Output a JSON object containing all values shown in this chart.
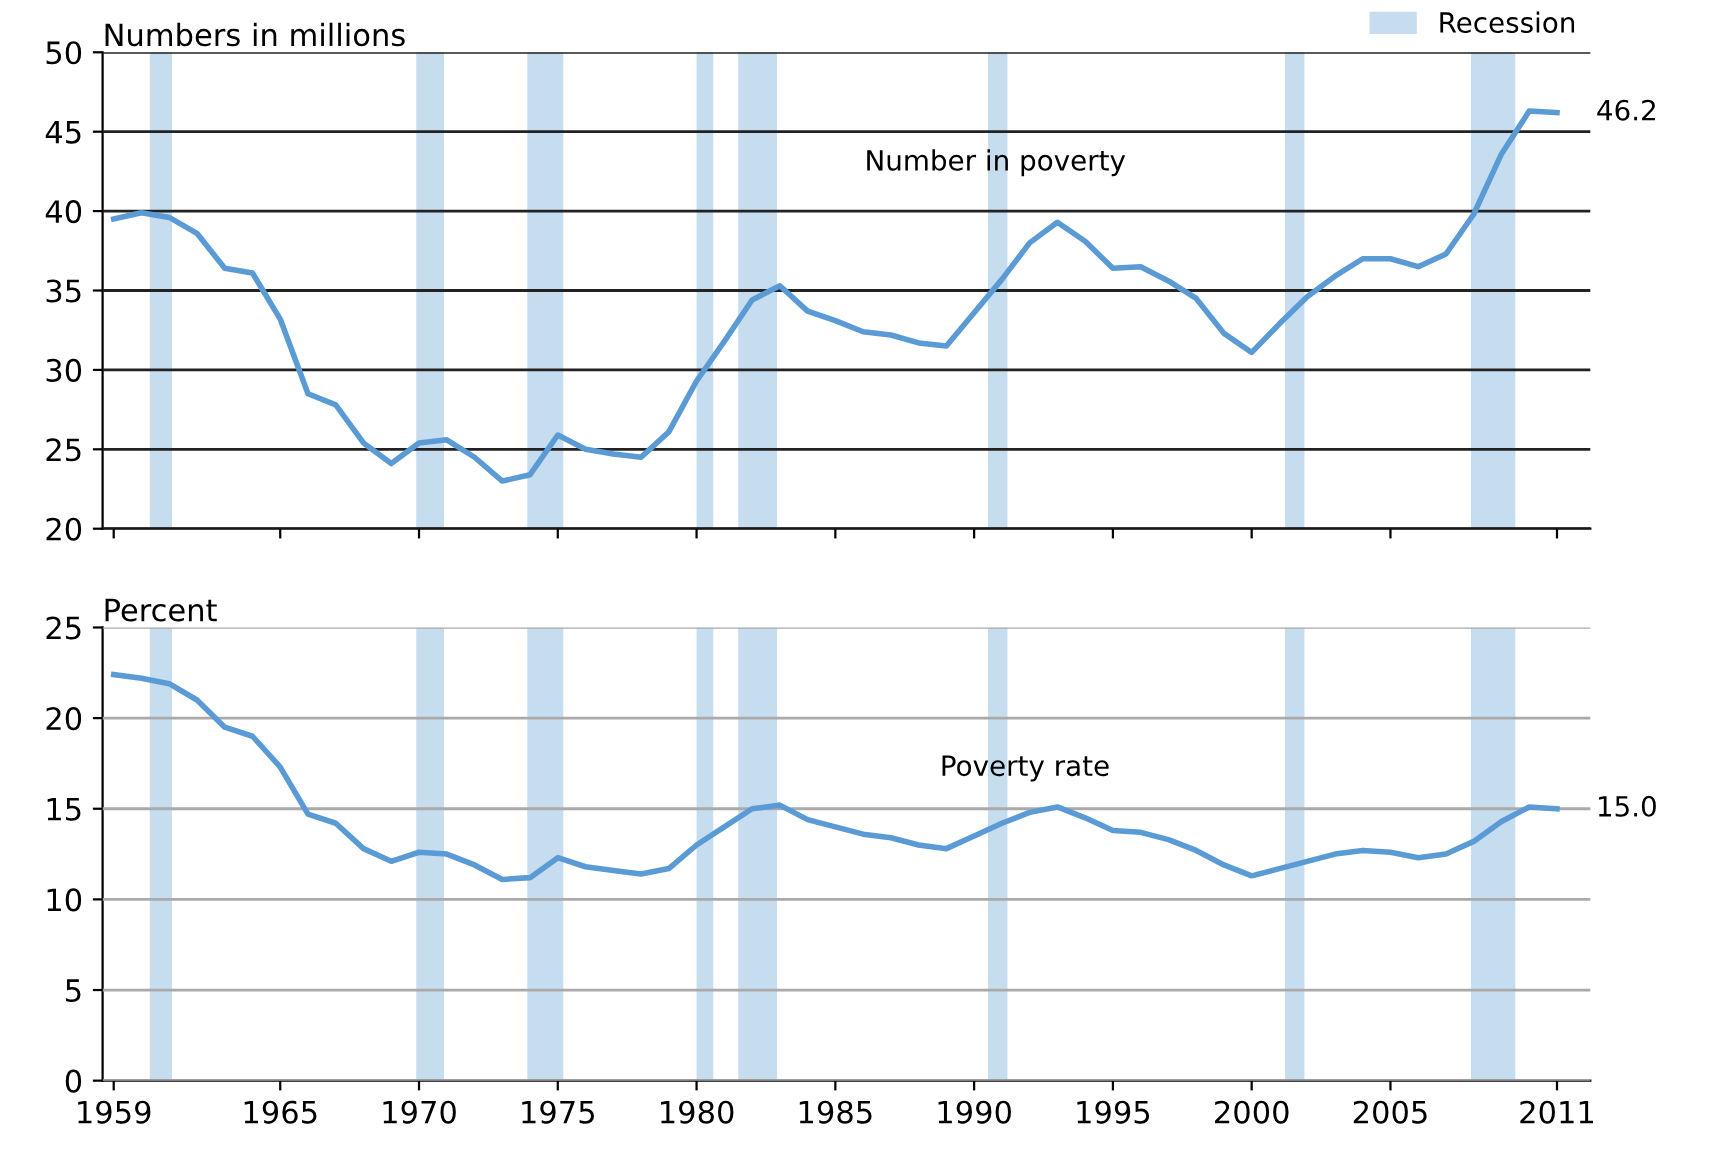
{
  "chart_data": [
    {
      "type": "line",
      "ylabel": "Numbers in millions",
      "x": [
        1959,
        1960,
        1961,
        1962,
        1963,
        1964,
        1965,
        1966,
        1967,
        1968,
        1969,
        1970,
        1971,
        1972,
        1973,
        1974,
        1975,
        1976,
        1977,
        1978,
        1979,
        1980,
        1981,
        1982,
        1983,
        1984,
        1985,
        1986,
        1987,
        1988,
        1989,
        1990,
        1991,
        1992,
        1993,
        1994,
        1995,
        1996,
        1997,
        1998,
        1999,
        2000,
        2001,
        2002,
        2003,
        2004,
        2005,
        2006,
        2007,
        2008,
        2009,
        2010,
        2011
      ],
      "series": [
        {
          "color": "#5b9bd5",
          "values": [
            39.5,
            39.9,
            39.6,
            38.6,
            36.4,
            36.1,
            33.2,
            28.5,
            27.8,
            25.4,
            24.1,
            25.4,
            25.6,
            24.5,
            23.0,
            23.4,
            25.9,
            25.0,
            24.7,
            24.5,
            26.1,
            29.3,
            31.8,
            34.4,
            35.3,
            33.7,
            33.1,
            32.4,
            32.2,
            31.7,
            31.5,
            33.6,
            35.7,
            38.0,
            39.3,
            38.1,
            36.4,
            36.5,
            35.6,
            34.5,
            32.3,
            31.1,
            32.9,
            34.6,
            35.9,
            37.0,
            37.0,
            36.5,
            37.3,
            39.8,
            43.6,
            46.3,
            46.2
          ]
        }
      ],
      "xlim": [
        1958.6,
        2012.2
      ],
      "xticks": [
        1959,
        1965,
        1970,
        1975,
        1980,
        1985,
        1990,
        1995,
        2000,
        2005,
        2011
      ],
      "ylim": [
        20,
        50
      ],
      "yticks": [
        20,
        25,
        30,
        35,
        40,
        45,
        50
      ],
      "grid": "y",
      "tick_labels": "y",
      "legend": "top right",
      "annotations": [
        "Number in poverty",
        {
          "text": "46.2",
          "x": 2011,
          "y": 46.2
        }
      ],
      "bands": [
        {
          "axis": "x",
          "from": 1960.3,
          "to": 1961.1,
          "color": "#c6dcef",
          "label": "Recession"
        },
        {
          "axis": "x",
          "from": 1969.9,
          "to": 1970.9,
          "color": "#c6dcef"
        },
        {
          "axis": "x",
          "from": 1973.9,
          "to": 1975.2,
          "color": "#c6dcef"
        },
        {
          "axis": "x",
          "from": 1980.0,
          "to": 1980.6,
          "color": "#c6dcef"
        },
        {
          "axis": "x",
          "from": 1981.5,
          "to": 1982.9,
          "color": "#c6dcef"
        },
        {
          "axis": "x",
          "from": 1990.5,
          "to": 1991.2,
          "color": "#c6dcef"
        },
        {
          "axis": "x",
          "from": 2001.2,
          "to": 2001.9,
          "color": "#c6dcef"
        },
        {
          "axis": "x",
          "from": 2007.9,
          "to": 2009.5,
          "color": "#c6dcef"
        }
      ]
    },
    {
      "type": "line",
      "ylabel": "Percent",
      "x": [
        1959,
        1960,
        1961,
        1962,
        1963,
        1964,
        1965,
        1966,
        1967,
        1968,
        1969,
        1970,
        1971,
        1972,
        1973,
        1974,
        1975,
        1976,
        1977,
        1978,
        1979,
        1980,
        1981,
        1982,
        1983,
        1984,
        1985,
        1986,
        1987,
        1988,
        1989,
        1990,
        1991,
        1992,
        1993,
        1994,
        1995,
        1996,
        1997,
        1998,
        1999,
        2000,
        2001,
        2002,
        2003,
        2004,
        2005,
        2006,
        2007,
        2008,
        2009,
        2010,
        2011
      ],
      "series": [
        {
          "color": "#5b9bd5",
          "values": [
            22.4,
            22.2,
            21.9,
            21.0,
            19.5,
            19.0,
            17.3,
            14.7,
            14.2,
            12.8,
            12.1,
            12.6,
            12.5,
            11.9,
            11.1,
            11.2,
            12.3,
            11.8,
            11.6,
            11.4,
            11.7,
            13.0,
            14.0,
            15.0,
            15.2,
            14.4,
            14.0,
            13.6,
            13.4,
            13.0,
            12.8,
            13.5,
            14.2,
            14.8,
            15.1,
            14.5,
            13.8,
            13.7,
            13.3,
            12.7,
            11.9,
            11.3,
            11.7,
            12.1,
            12.5,
            12.7,
            12.6,
            12.3,
            12.5,
            13.2,
            14.3,
            15.1,
            15.0
          ]
        }
      ],
      "xlim": [
        1958.6,
        2012.2
      ],
      "xticks": [
        1959,
        1965,
        1970,
        1975,
        1980,
        1985,
        1990,
        1995,
        2000,
        2005,
        2011
      ],
      "ylim": [
        0,
        25
      ],
      "yticks": [
        0,
        5,
        10,
        15,
        20,
        25
      ],
      "grid": "y",
      "annotations": [
        "Poverty rate",
        {
          "text": "15.0",
          "x": 2011,
          "y": 15.0
        }
      ],
      "bands": [
        {
          "axis": "x",
          "from": 1960.3,
          "to": 1961.1,
          "color": "#c6dcef"
        },
        {
          "axis": "x",
          "from": 1969.9,
          "to": 1970.9,
          "color": "#c6dcef"
        },
        {
          "axis": "x",
          "from": 1973.9,
          "to": 1975.2,
          "color": "#c6dcef"
        },
        {
          "axis": "x",
          "from": 1980.0,
          "to": 1980.6,
          "color": "#c6dcef"
        },
        {
          "axis": "x",
          "from": 1981.5,
          "to": 1982.9,
          "color": "#c6dcef"
        },
        {
          "axis": "x",
          "from": 1990.5,
          "to": 1991.2,
          "color": "#c6dcef"
        },
        {
          "axis": "x",
          "from": 2001.2,
          "to": 2001.9,
          "color": "#c6dcef"
        },
        {
          "axis": "x",
          "from": 2007.9,
          "to": 2009.5,
          "color": "#c6dcef"
        }
      ]
    }
  ]
}
